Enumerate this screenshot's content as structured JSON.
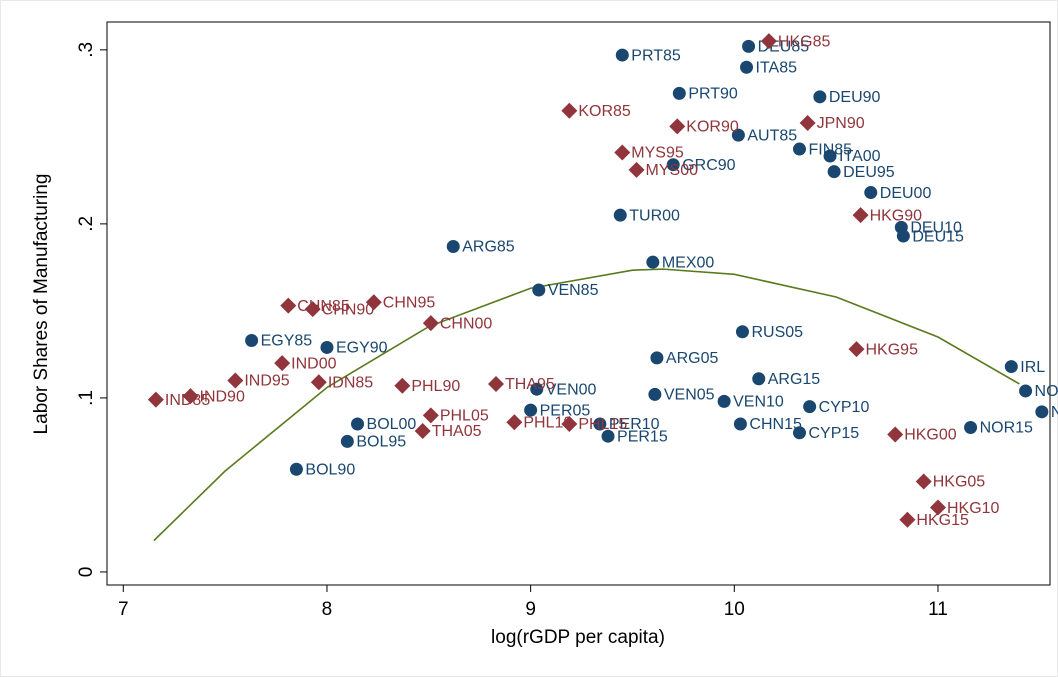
{
  "chart_data": {
    "type": "scatter",
    "x_label": "log(rGDP per capita)",
    "y_label": "Labor Shares of Manufacturing",
    "xlim": [
      6.92,
      11.55
    ],
    "ylim": [
      -0.0075,
      0.316
    ],
    "xticks": [
      7,
      8,
      9,
      10,
      11
    ],
    "yticks": [
      0,
      {
        "value": 0.1,
        "label": ".1"
      },
      {
        "value": 0.2,
        "label": ".2"
      },
      {
        "value": 0.3,
        "label": ".3"
      }
    ],
    "grid": false,
    "series": [
      {
        "marker": "circle",
        "color": "#1a476f",
        "labels": [
          "PRT85",
          "DEU85",
          "ITA85",
          "PRT90",
          "GRC90",
          "DEU90",
          "ITA00",
          "ARG85",
          "TUR00",
          "VEN85",
          "EGY85",
          "EGY90",
          "BOL00",
          "BOL95",
          "BOL90",
          "PER05",
          "PER10",
          "PER15",
          "VEN00",
          "VEN05",
          "VEN10",
          "CHN15",
          "CYP15",
          "CYP10",
          "NOR15",
          "NOR",
          "NOR",
          "IRL",
          "ARG05",
          "ARG15",
          "RUS05",
          "MEX00",
          "DEU95",
          "DEU00",
          "DEU15",
          "DEU10",
          "AUT85",
          "FIN85"
        ],
        "x": [
          9.45,
          10.07,
          10.06,
          9.73,
          9.7,
          10.42,
          10.47,
          8.62,
          9.44,
          9.04,
          7.63,
          8.0,
          8.15,
          8.1,
          7.85,
          9.0,
          9.34,
          9.38,
          9.03,
          9.61,
          9.95,
          10.03,
          10.32,
          10.37,
          11.16,
          11.43,
          11.51,
          11.36,
          9.62,
          10.12,
          10.04,
          9.6,
          10.49,
          10.67,
          10.83,
          10.82,
          10.02,
          10.32
        ],
        "values": [
          0.297,
          0.302,
          0.29,
          0.275,
          0.234,
          0.273,
          0.239,
          0.187,
          0.205,
          0.162,
          0.133,
          0.129,
          0.085,
          0.075,
          0.059,
          0.093,
          0.085,
          0.078,
          0.105,
          0.102,
          0.098,
          0.085,
          0.08,
          0.095,
          0.083,
          0.104,
          0.092,
          0.118,
          0.123,
          0.111,
          0.138,
          0.178,
          0.23,
          0.218,
          0.193,
          0.198,
          0.251,
          0.243
        ]
      },
      {
        "marker": "diamond",
        "color": "#90353b",
        "labels": [
          "HKG85",
          "KOR85",
          "KOR90",
          "MYS95",
          "MYS00",
          "JPN90",
          "CHN85",
          "CHN90",
          "CHN95",
          "CHN00",
          "IND00",
          "IND95",
          "IND85",
          "IND90",
          "IDN85",
          "PHL90",
          "PHL05",
          "PHL10",
          "PHL15",
          "THA05",
          "THA95",
          "HKG05",
          "HKG10",
          "HKG15",
          "HKG00",
          "HKG95",
          "HKG90"
        ],
        "x": [
          10.17,
          9.19,
          9.72,
          9.45,
          9.52,
          10.36,
          7.81,
          7.93,
          8.23,
          8.51,
          7.78,
          7.55,
          7.16,
          7.33,
          7.96,
          8.37,
          8.51,
          8.92,
          9.19,
          8.47,
          8.83,
          10.93,
          11.0,
          10.85,
          10.79,
          10.6,
          10.62
        ],
        "values": [
          0.305,
          0.265,
          0.256,
          0.241,
          0.231,
          0.258,
          0.153,
          0.151,
          0.155,
          0.143,
          0.12,
          0.11,
          0.099,
          0.101,
          0.109,
          0.107,
          0.09,
          0.086,
          0.085,
          0.081,
          0.108,
          0.052,
          0.037,
          0.03,
          0.079,
          0.128,
          0.205
        ]
      }
    ],
    "fit": {
      "color": "#5a7a1e",
      "x": [
        7.15,
        7.5,
        8,
        8.5,
        9,
        9.5,
        9.65,
        10,
        10.5,
        11,
        11.4
      ],
      "values": [
        0.018,
        0.058,
        0.106,
        0.141,
        0.163,
        0.1734,
        0.174,
        0.171,
        0.158,
        0.135,
        0.108
      ]
    }
  }
}
